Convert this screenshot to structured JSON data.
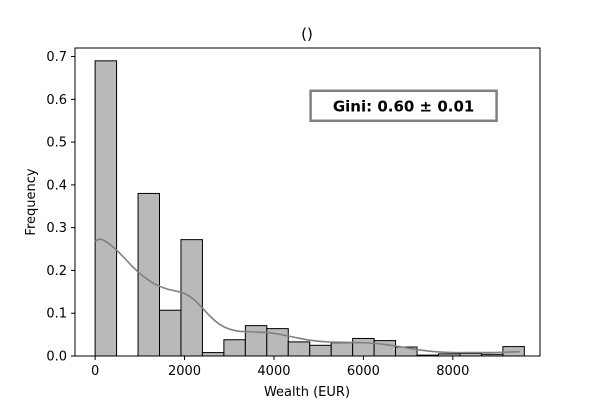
{
  "chart_data": {
    "type": "bar",
    "title": "()",
    "xlabel": "Wealth (EUR)",
    "ylabel": "Frequency",
    "xlim": [
      -450,
      9950
    ],
    "ylim": [
      0,
      0.72
    ],
    "xticks": [
      0,
      2000,
      4000,
      6000,
      8000
    ],
    "yticks": [
      0.0,
      0.1,
      0.2,
      0.3,
      0.4,
      0.5,
      0.6,
      0.7
    ],
    "bin_width": 480,
    "bins": [
      {
        "x0": 0,
        "value": 0.69
      },
      {
        "x0": 480,
        "value": 0.0
      },
      {
        "x0": 960,
        "value": 0.38
      },
      {
        "x0": 1440,
        "value": 0.107
      },
      {
        "x0": 1920,
        "value": 0.272
      },
      {
        "x0": 2400,
        "value": 0.008
      },
      {
        "x0": 2880,
        "value": 0.038
      },
      {
        "x0": 3360,
        "value": 0.071
      },
      {
        "x0": 3840,
        "value": 0.064
      },
      {
        "x0": 4320,
        "value": 0.033
      },
      {
        "x0": 4800,
        "value": 0.025
      },
      {
        "x0": 5280,
        "value": 0.031
      },
      {
        "x0": 5760,
        "value": 0.041
      },
      {
        "x0": 6240,
        "value": 0.036
      },
      {
        "x0": 6720,
        "value": 0.021
      },
      {
        "x0": 7200,
        "value": 0.002
      },
      {
        "x0": 7680,
        "value": 0.005
      },
      {
        "x0": 8160,
        "value": 0.006
      },
      {
        "x0": 8640,
        "value": 0.004
      },
      {
        "x0": 9120,
        "value": 0.022
      }
    ],
    "kde": {
      "x": [
        0,
        100,
        200,
        400,
        600,
        800,
        1000,
        1200,
        1400,
        1600,
        1800,
        2000,
        2200,
        2400,
        2600,
        2800,
        3000,
        3200,
        3400,
        3600,
        3800,
        4000,
        4400,
        4800,
        5200,
        5600,
        6000,
        6400,
        6800,
        7200,
        7600,
        8000,
        8400,
        8800,
        9200,
        9500
      ],
      "y": [
        0.268,
        0.273,
        0.27,
        0.255,
        0.235,
        0.213,
        0.193,
        0.177,
        0.165,
        0.157,
        0.152,
        0.146,
        0.133,
        0.112,
        0.09,
        0.073,
        0.063,
        0.058,
        0.057,
        0.056,
        0.055,
        0.053,
        0.045,
        0.037,
        0.033,
        0.032,
        0.031,
        0.028,
        0.022,
        0.015,
        0.01,
        0.008,
        0.008,
        0.008,
        0.009,
        0.01
      ]
    },
    "bar_fill": "#b9b9b9",
    "bar_edge": "#000000",
    "kde_color": "#808080",
    "grid": false,
    "annotation": {
      "text": "Gini: 0.60 ± 0.01",
      "x": 6900,
      "y": 0.585
    }
  }
}
